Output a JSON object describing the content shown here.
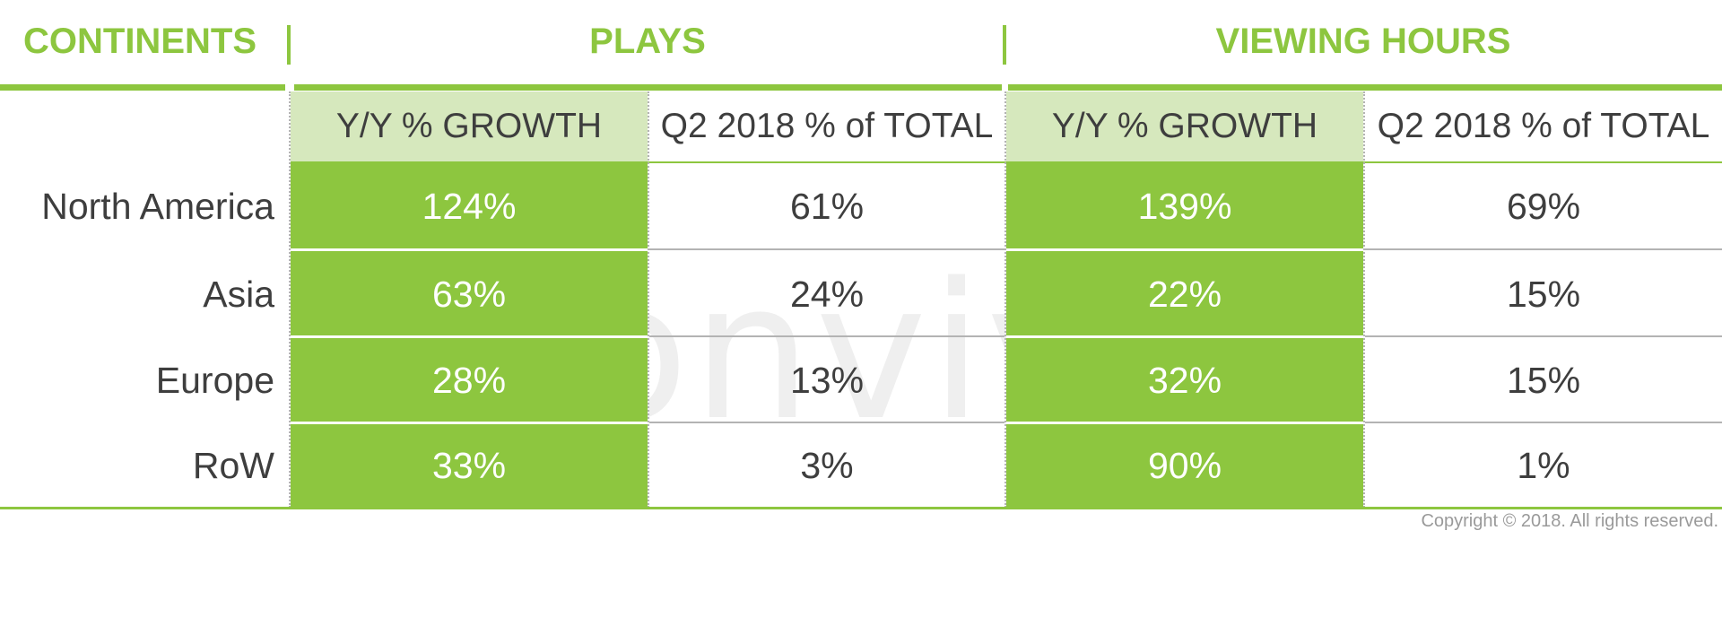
{
  "chart_data": {
    "type": "table",
    "headers": {
      "continents": "CONTINENTS",
      "plays": "PLAYS",
      "viewing_hours": "VIEWING HOURS"
    },
    "subheaders": [
      "Y/Y % GROWTH",
      "Q2 2018 % of TOTAL",
      "Y/Y % GROWTH",
      "Q2 2018 % of TOTAL"
    ],
    "rows": [
      {
        "label": "North America",
        "values": [
          "124%",
          "61%",
          "139%",
          "69%"
        ]
      },
      {
        "label": "Asia",
        "values": [
          "63%",
          "24%",
          "22%",
          "15%"
        ]
      },
      {
        "label": "Europe",
        "values": [
          "28%",
          "13%",
          "32%",
          "15%"
        ]
      },
      {
        "label": "RoW",
        "values": [
          "33%",
          "3%",
          "90%",
          "1%"
        ]
      }
    ],
    "accent_color": "#8dc63f",
    "subheader_fill": "#d6e8bd"
  },
  "watermark": "conviva",
  "footer": {
    "copyright": "Copyright © 2018. All rights reserved."
  }
}
